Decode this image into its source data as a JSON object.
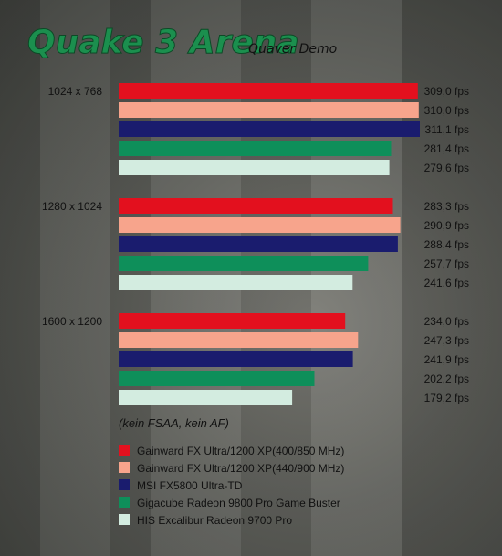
{
  "chart_data": {
    "type": "bar",
    "orientation": "horizontal",
    "title": "Quake 3 Arena",
    "subtitle": "Quaver Demo",
    "categories": [
      "1024 x 768",
      "1280 x 1024",
      "1600 x 1200"
    ],
    "series": [
      {
        "name": "Gainward FX Ultra/1200 XP(400/850 MHz)",
        "color": "#e3101e",
        "values": [
          309.0,
          283.3,
          234.0
        ],
        "labels": [
          "309,0 fps",
          "283,3 fps",
          "234,0 fps"
        ]
      },
      {
        "name": "Gainward FX Ultra/1200 XP(440/900 MHz)",
        "color": "#f7a48c",
        "values": [
          310.0,
          290.9,
          247.3
        ],
        "labels": [
          "310,0 fps",
          "290,9 fps",
          "247,3 fps"
        ]
      },
      {
        "name": "MSI FX5800 Ultra-TD",
        "color": "#1a1c6e",
        "values": [
          311.1,
          288.4,
          241.9
        ],
        "labels": [
          "311,1 fps",
          "288,4 fps",
          "241,9 fps"
        ]
      },
      {
        "name": "Gigacube Radeon 9800 Pro Game Buster",
        "color": "#0e8f5a",
        "values": [
          281.4,
          257.7,
          202.2
        ],
        "labels": [
          "281,4 fps",
          "257,7 fps",
          "202,2 fps"
        ]
      },
      {
        "name": "HIS Excalibur Radeon 9700 Pro",
        "color": "#d3ece0",
        "values": [
          279.6,
          241.6,
          179.2
        ],
        "labels": [
          "279,6 fps",
          "241,6 fps",
          "179,2 fps"
        ]
      }
    ],
    "xlim": [
      0,
      311.1
    ],
    "grid": false,
    "legend_placement": "bottom-left",
    "note": "(kein FSAA, kein AF)"
  }
}
